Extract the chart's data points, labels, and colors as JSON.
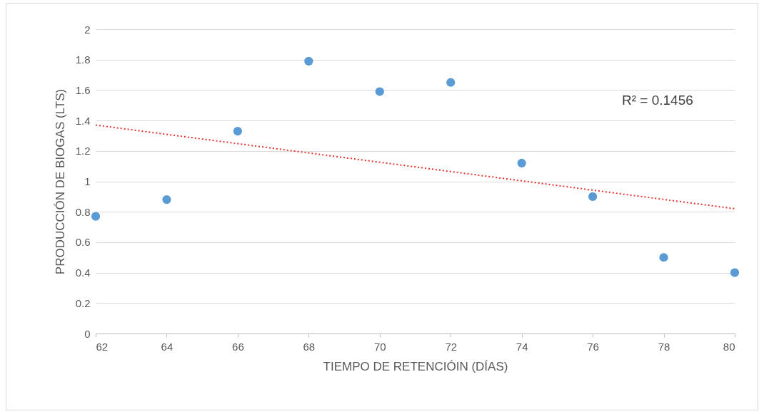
{
  "chart_data": {
    "type": "scatter",
    "xlabel": "TIEMPO DE RETENCIÓIN (DÍAS)",
    "ylabel": "PRODUCCIÓN DE BIOGAS (LTS)",
    "x": [
      62,
      64,
      66,
      68,
      70,
      72,
      74,
      76,
      78,
      80
    ],
    "series": [
      {
        "color": "#5b9bd5",
        "marker": "circle",
        "values": [
          0.77,
          0.88,
          1.33,
          1.79,
          1.59,
          1.65,
          1.12,
          0.9,
          0.5,
          0.4
        ]
      },
      {
        "type": "line",
        "color": "#e8322d",
        "line_style": "dotted",
        "x": [
          62,
          80
        ],
        "values": [
          1.37,
          0.82
        ]
      }
    ],
    "xlim": [
      62,
      80
    ],
    "xticks": [
      62,
      64,
      66,
      68,
      70,
      72,
      74,
      76,
      78,
      80
    ],
    "ylim": [
      0,
      2
    ],
    "yticks": [
      0,
      0.2,
      0.4,
      0.6,
      0.8,
      1,
      1.2,
      1.4,
      1.6,
      1.8,
      2
    ],
    "grid": "y",
    "annotations": [
      "R² = 0.1456"
    ]
  }
}
